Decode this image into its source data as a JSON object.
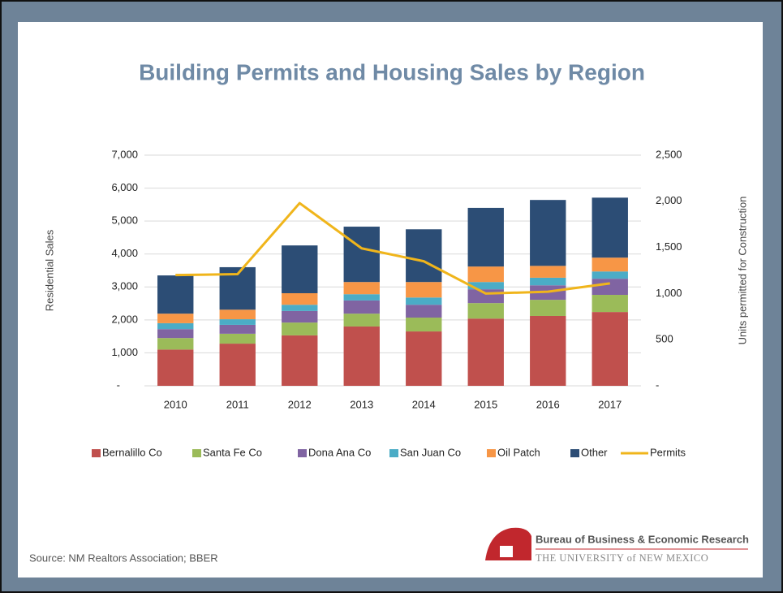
{
  "chart_data": {
    "type": "bar",
    "stacked": true,
    "title": "Building Permits and Housing Sales by Region",
    "y_label": "Residential Sales",
    "y2_label": "Units permitted for Construction",
    "categories": [
      "2010",
      "2011",
      "2012",
      "2013",
      "2014",
      "2015",
      "2016",
      "2017"
    ],
    "series": [
      {
        "name": "Bernalillo Co",
        "color": "#c0504d",
        "values": [
          1100,
          1280,
          1530,
          1800,
          1650,
          2040,
          2120,
          2240
        ]
      },
      {
        "name": "Santa Fe Co",
        "color": "#9bbb59",
        "values": [
          350,
          300,
          390,
          390,
          420,
          470,
          490,
          520
        ]
      },
      {
        "name": "Dona Ana Co",
        "color": "#8064a2",
        "values": [
          270,
          270,
          350,
          400,
          390,
          420,
          440,
          490
        ]
      },
      {
        "name": "San Juan Co",
        "color": "#4bacc6",
        "values": [
          180,
          170,
          190,
          190,
          220,
          220,
          230,
          220
        ]
      },
      {
        "name": "Oil Patch",
        "color": "#f79646",
        "values": [
          290,
          290,
          350,
          370,
          470,
          470,
          360,
          420
        ]
      },
      {
        "name": "Other",
        "color": "#2c4d75",
        "values": [
          1160,
          1290,
          1450,
          1680,
          1600,
          1780,
          2000,
          1820
        ]
      },
      {
        "name": "Permits",
        "color": "#f0b51b",
        "type": "line",
        "axis": "y2",
        "values": [
          1200,
          1210,
          1980,
          1490,
          1350,
          1000,
          1020,
          1110
        ]
      }
    ],
    "ylim": [
      0,
      7000
    ],
    "yticks": [
      {
        "value": 0,
        "label": "-"
      },
      {
        "value": 1000,
        "label": "1,000"
      },
      {
        "value": 2000,
        "label": "2,000"
      },
      {
        "value": 3000,
        "label": "3,000"
      },
      {
        "value": 4000,
        "label": "4,000"
      },
      {
        "value": 5000,
        "label": "5,000"
      },
      {
        "value": 6000,
        "label": "6,000"
      },
      {
        "value": 7000,
        "label": "7,000"
      }
    ],
    "y2lim": [
      0,
      2500
    ],
    "y2ticks": [
      {
        "value": 0,
        "label": "-"
      },
      {
        "value": 500,
        "label": "500"
      },
      {
        "value": 1000,
        "label": "1,000"
      },
      {
        "value": 1500,
        "label": "1,500"
      },
      {
        "value": 2000,
        "label": "2,000"
      },
      {
        "value": 2500,
        "label": "2,500"
      }
    ],
    "grid": true,
    "legend": "bottom",
    "source": "Source: NM Realtors Association; BBER"
  },
  "footer": {
    "org": "Bureau of Business & Economic Research",
    "university": "THE UNIVERSITY of NEW MEXICO"
  }
}
